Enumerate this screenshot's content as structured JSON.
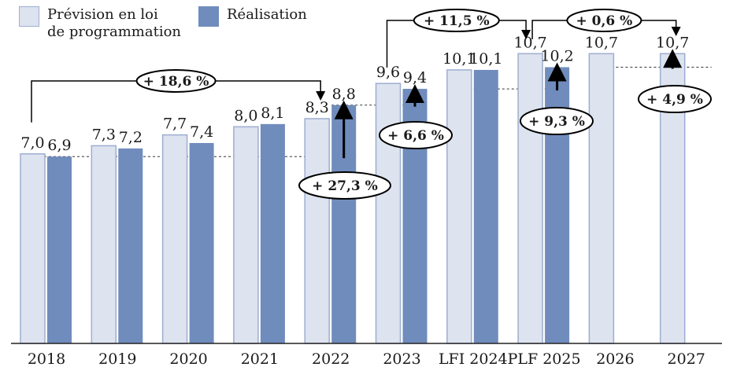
{
  "legend": [
    {
      "label_line1": "Prévision en loi",
      "label_line2": "de programmation",
      "color": "#dde3ef",
      "border": "#9eaed0"
    },
    {
      "label": "Réalisation",
      "color": "#6f8cbc",
      "border": "#6f8cbc"
    }
  ],
  "chart_data": {
    "type": "bar",
    "categories": [
      "2018",
      "2019",
      "2020",
      "2021",
      "2022",
      "2023",
      "LFI 2024",
      "PLF 2025",
      "2026",
      "2027"
    ],
    "series": [
      {
        "name": "Prévision en loi de programmation",
        "values": [
          7.0,
          7.3,
          7.7,
          8.0,
          8.3,
          9.6,
          10.1,
          10.7,
          10.7,
          10.7
        ],
        "labels": [
          "7,0",
          "7,3",
          "7,7",
          "8,0",
          "8,3",
          "9,6",
          "10,1",
          "10,7",
          "10,7",
          "10,7"
        ],
        "color": "#dde3ef"
      },
      {
        "name": "Réalisation",
        "values": [
          6.9,
          7.2,
          7.4,
          8.1,
          8.8,
          9.4,
          10.1,
          10.2,
          null,
          null
        ],
        "labels": [
          "6,9",
          "7,2",
          "7,4",
          "8,1",
          "8,8",
          "9,4",
          "10,1",
          "10,2",
          "",
          ""
        ],
        "color": "#6f8cbc"
      }
    ],
    "ylim": [
      0,
      12
    ],
    "grid": false,
    "annotations": [
      {
        "text": "+ 18,6 %",
        "type": "bracket",
        "from": "2018",
        "to": "2022",
        "series": "Prévision en loi de programmation"
      },
      {
        "text": "+ 11,5 %",
        "type": "bracket",
        "from": "2023",
        "to": "PLF 2025",
        "series": "Prévision en loi de programmation"
      },
      {
        "text": "+ 0,6 %",
        "type": "bracket",
        "from": "PLF 2025",
        "to": "2027",
        "series": "Prévision en loi de programmation"
      },
      {
        "text": "+ 27,3 %",
        "type": "arrow",
        "category": "2022",
        "from_value": 6.9,
        "to_value": 8.8
      },
      {
        "text": "+ 6,6 %",
        "type": "arrow",
        "category": "2023",
        "from_value": 8.8,
        "to_value": 9.4
      },
      {
        "text": "+ 9,3 %",
        "type": "arrow",
        "category": "PLF 2025",
        "from_value": 9.4,
        "to_value": 10.2
      },
      {
        "text": "+ 4,9 %",
        "type": "arrow",
        "category": "2027",
        "from_value": 10.2,
        "to_value": 10.7
      }
    ]
  }
}
